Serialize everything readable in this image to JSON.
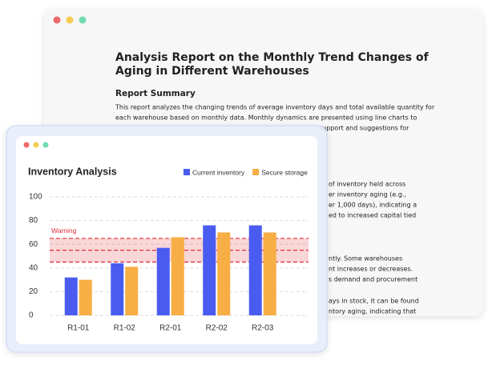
{
  "document": {
    "title": [
      "Analysis Report on the Monthly Trend Changes of",
      "Aging in Different Warehouses"
    ],
    "heading": "Report Summary",
    "lines": [
      "This report analyzes the changing trends of average inventory days and total available quantity for",
      "each warehouse based on monthly data. Monthly dynamics are presented using line charts to",
      "support and suggestions for",
      "of inventory held across",
      "er inventory aging (e.g.,",
      "er 1,000 days), indicating a",
      "ed to increased capital tied",
      "ntly. Some warehouses",
      "nt increases or decreases.",
      "s demand and procurement",
      "ays in stock, it can be found",
      "ntory aging, indicating that"
    ]
  },
  "chart_data": {
    "type": "bar",
    "title": "Inventory Analysis",
    "categories": [
      "R1-01",
      "R1-02",
      "R2-01",
      "R2-02",
      "R2-03"
    ],
    "series": [
      {
        "name": "Current inventory",
        "color": "#4a5cf0",
        "values": [
          32,
          44,
          57,
          76,
          76
        ]
      },
      {
        "name": "Secure storage",
        "color": "#f7ae45",
        "values": [
          30,
          41,
          66,
          70,
          70
        ]
      }
    ],
    "ylim": [
      0,
      100
    ],
    "yticks": [
      0,
      20,
      40,
      60,
      80,
      100
    ],
    "grid": true,
    "warning": {
      "label": "Warning",
      "low": 45,
      "mid": 55,
      "high": 65,
      "color": "#e0303a"
    }
  }
}
